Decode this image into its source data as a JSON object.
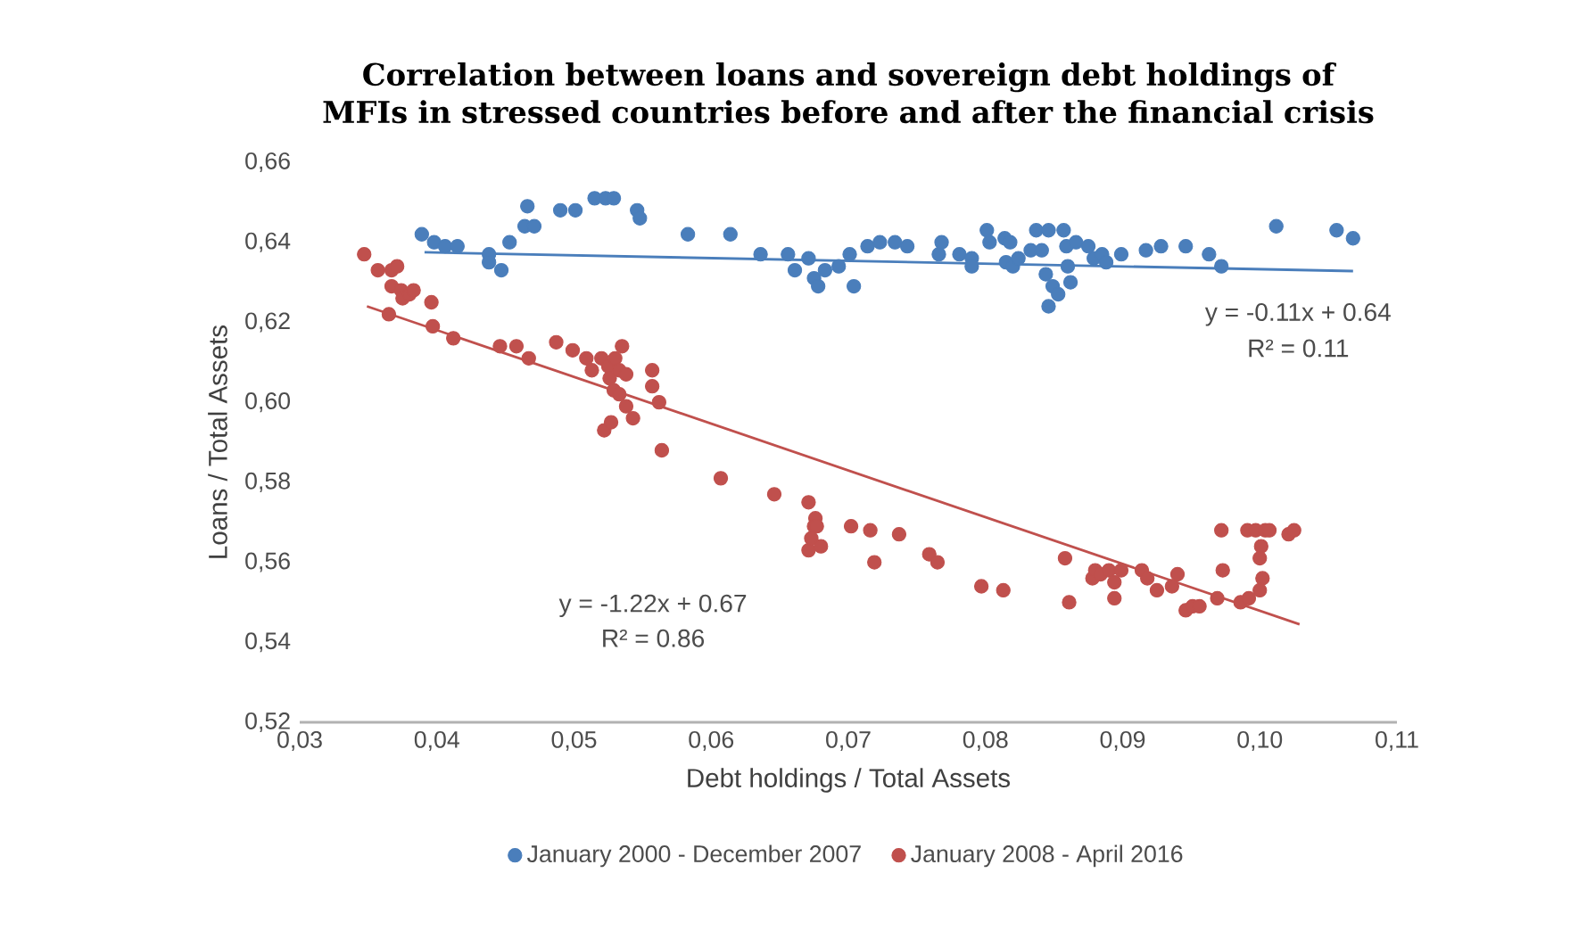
{
  "chart_data": {
    "type": "scatter",
    "title": "Correlation between loans and sovereign debt holdings of MFIs in stressed countries before and after the financial crisis",
    "xlabel": "Debt holdings / Total Assets",
    "ylabel": "Loans / Total Assets",
    "xlim": [
      0.03,
      0.11
    ],
    "ylim": [
      0.52,
      0.66
    ],
    "xticks": [
      {
        "value": 0.03,
        "label": "0,03"
      },
      {
        "value": 0.04,
        "label": "0,04"
      },
      {
        "value": 0.05,
        "label": "0,05"
      },
      {
        "value": 0.06,
        "label": "0,06"
      },
      {
        "value": 0.07,
        "label": "0,07"
      },
      {
        "value": 0.08,
        "label": "0,08"
      },
      {
        "value": 0.09,
        "label": "0,09"
      },
      {
        "value": 0.1,
        "label": "0,10"
      },
      {
        "value": 0.11,
        "label": "0,11"
      }
    ],
    "yticks": [
      {
        "value": 0.52,
        "label": "0,52"
      },
      {
        "value": 0.54,
        "label": "0,54"
      },
      {
        "value": 0.56,
        "label": "0,56"
      },
      {
        "value": 0.58,
        "label": "0,58"
      },
      {
        "value": 0.6,
        "label": "0,60"
      },
      {
        "value": 0.62,
        "label": "0,62"
      },
      {
        "value": 0.64,
        "label": "0,64"
      },
      {
        "value": 0.66,
        "label": "0,66"
      }
    ],
    "marker": "circle",
    "legend": "bottom",
    "annotations": [
      "y = -0.11x + 0.64",
      "R² = 0.11",
      "y = -1.22x + 0.67",
      "R² = 0.86"
    ],
    "series": [
      {
        "name": "January 2000 - December 2007",
        "color": "#4a7ebb",
        "x": [
          0.0389,
          0.0398,
          0.0406,
          0.0415,
          0.0438,
          0.0438,
          0.0447,
          0.0453,
          0.0466,
          0.0464,
          0.0471,
          0.049,
          0.0501,
          0.0515,
          0.0523,
          0.0529,
          0.0546,
          0.0548,
          0.0583,
          0.0614,
          0.0636,
          0.0656,
          0.0671,
          0.0661,
          0.0675,
          0.0678,
          0.0683,
          0.0693,
          0.0704,
          0.0701,
          0.0714,
          0.0723,
          0.0734,
          0.0743,
          0.0766,
          0.0768,
          0.0781,
          0.079,
          0.079,
          0.0801,
          0.0803,
          0.0814,
          0.0818,
          0.0815,
          0.082,
          0.0824,
          0.0833,
          0.0837,
          0.0841,
          0.0846,
          0.0844,
          0.0849,
          0.0846,
          0.0853,
          0.0857,
          0.0859,
          0.086,
          0.0862,
          0.0866,
          0.0875,
          0.0879,
          0.0885,
          0.0888,
          0.0899,
          0.0917,
          0.0928,
          0.0946,
          0.0963,
          0.0972,
          0.1012,
          0.1056,
          0.1068
        ],
        "values": [
          0.642,
          0.64,
          0.639,
          0.639,
          0.637,
          0.635,
          0.633,
          0.64,
          0.649,
          0.644,
          0.644,
          0.648,
          0.648,
          0.651,
          0.651,
          0.651,
          0.648,
          0.646,
          0.642,
          0.642,
          0.637,
          0.637,
          0.636,
          0.633,
          0.631,
          0.629,
          0.633,
          0.634,
          0.629,
          0.637,
          0.639,
          0.64,
          0.64,
          0.639,
          0.637,
          0.64,
          0.637,
          0.636,
          0.634,
          0.643,
          0.64,
          0.641,
          0.64,
          0.635,
          0.634,
          0.636,
          0.638,
          0.643,
          0.638,
          0.643,
          0.632,
          0.629,
          0.624,
          0.627,
          0.643,
          0.639,
          0.634,
          0.63,
          0.64,
          0.639,
          0.636,
          0.637,
          0.635,
          0.637,
          0.638,
          0.639,
          0.639,
          0.637,
          0.634,
          0.644,
          0.643,
          0.641
        ]
      },
      {
        "name": "January 2008 - April 2016",
        "color": "#c0504d",
        "x": [
          0.0347,
          0.0357,
          0.0367,
          0.0371,
          0.0367,
          0.0374,
          0.0375,
          0.0365,
          0.038,
          0.0383,
          0.0396,
          0.0397,
          0.0412,
          0.0446,
          0.0458,
          0.0467,
          0.0487,
          0.0499,
          0.0509,
          0.0513,
          0.052,
          0.0525,
          0.0526,
          0.053,
          0.0533,
          0.0535,
          0.0538,
          0.0529,
          0.0533,
          0.0538,
          0.0543,
          0.0522,
          0.0527,
          0.0557,
          0.0557,
          0.0562,
          0.0564,
          0.0607,
          0.0646,
          0.0671,
          0.0676,
          0.0675,
          0.0677,
          0.0671,
          0.0673,
          0.068,
          0.0702,
          0.0716,
          0.0719,
          0.0737,
          0.0759,
          0.0765,
          0.0797,
          0.0813,
          0.0858,
          0.0861,
          0.0878,
          0.088,
          0.0884,
          0.089,
          0.0894,
          0.0894,
          0.0899,
          0.0914,
          0.0918,
          0.0925,
          0.0936,
          0.094,
          0.0946,
          0.0951,
          0.0956,
          0.0969,
          0.0972,
          0.0973,
          0.0986,
          0.0992,
          0.0991,
          0.0997,
          0.1001,
          0.1,
          0.1004,
          0.1002,
          0.1,
          0.1007,
          0.1021,
          0.1025
        ],
        "values": [
          0.637,
          0.633,
          0.633,
          0.634,
          0.629,
          0.628,
          0.626,
          0.622,
          0.627,
          0.628,
          0.625,
          0.619,
          0.616,
          0.614,
          0.614,
          0.611,
          0.615,
          0.613,
          0.611,
          0.608,
          0.611,
          0.609,
          0.606,
          0.611,
          0.608,
          0.614,
          0.607,
          0.603,
          0.602,
          0.599,
          0.596,
          0.593,
          0.595,
          0.608,
          0.604,
          0.6,
          0.588,
          0.581,
          0.577,
          0.575,
          0.571,
          0.569,
          0.569,
          0.563,
          0.566,
          0.564,
          0.569,
          0.568,
          0.56,
          0.567,
          0.562,
          0.56,
          0.554,
          0.553,
          0.561,
          0.55,
          0.556,
          0.558,
          0.557,
          0.558,
          0.555,
          0.551,
          0.558,
          0.558,
          0.556,
          0.553,
          0.554,
          0.557,
          0.548,
          0.549,
          0.549,
          0.551,
          0.568,
          0.558,
          0.55,
          0.551,
          0.568,
          0.568,
          0.564,
          0.561,
          0.568,
          0.556,
          0.553,
          0.568,
          0.567,
          0.568
        ]
      },
      {
        "type": "line",
        "marker": "none",
        "color": "#4a7ebb",
        "x": [
          0.0391,
          0.1068
        ],
        "values": [
          0.6375,
          0.6328
        ]
      },
      {
        "type": "line",
        "marker": "none",
        "color": "#c0504d",
        "x": [
          0.0349,
          0.1029
        ],
        "values": [
          0.624,
          0.5445
        ]
      }
    ]
  }
}
